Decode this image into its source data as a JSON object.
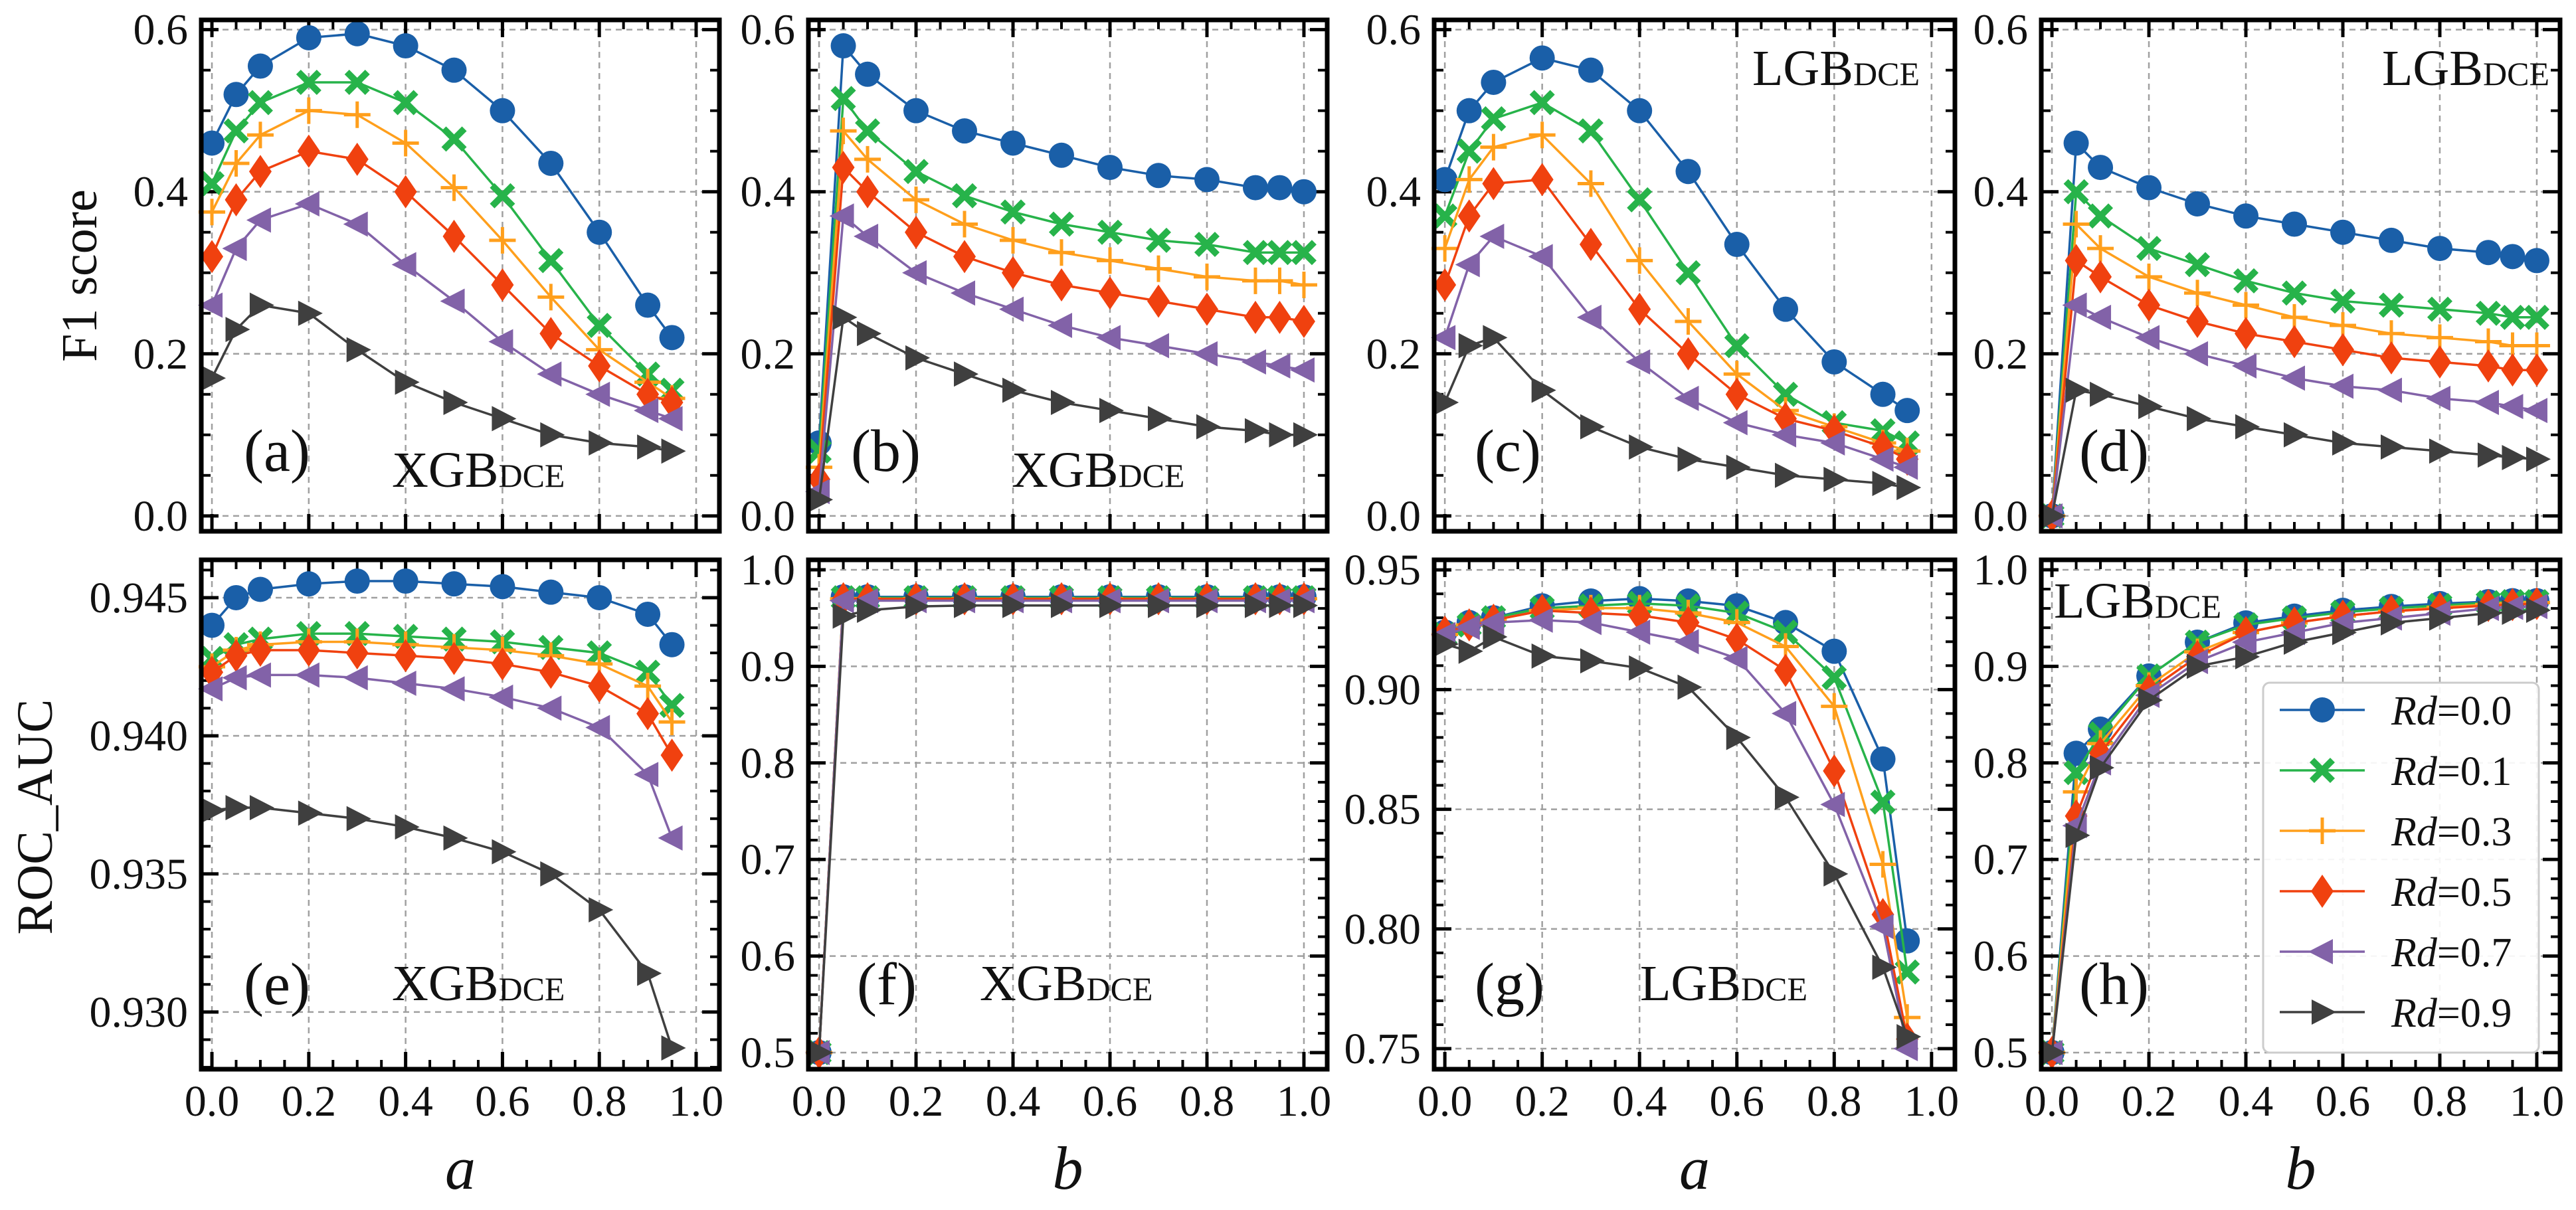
{
  "colors": {
    "series": [
      "#1a5fa8",
      "#27b34a",
      "#ff9f1c",
      "#f0410f",
      "#8262a8",
      "#3f3f3f"
    ],
    "grid": "#a0a0a0",
    "axis": "#000000"
  },
  "chart_data": {
    "type": "line",
    "legend": {
      "placement": "lower-right of panel (h)",
      "entries": [
        {
          "var": "Rd",
          "value": "=0.0",
          "marker": "circle"
        },
        {
          "var": "Rd",
          "value": "=0.1",
          "marker": "x-filled"
        },
        {
          "var": "Rd",
          "value": "=0.3",
          "marker": "plus"
        },
        {
          "var": "Rd",
          "value": "=0.5",
          "marker": "diamond"
        },
        {
          "var": "Rd",
          "value": "=0.7",
          "marker": "triangle-left"
        },
        {
          "var": "Rd",
          "value": "=0.9",
          "marker": "triangle-right"
        }
      ]
    },
    "ylabels": {
      "top": "F1 score",
      "bottom": "ROC_AUC"
    },
    "xlabels": [
      "a",
      "b",
      "a",
      "b"
    ],
    "xtick_labels": [
      "0.0",
      "0.2",
      "0.4",
      "0.6",
      "0.8",
      "1.0"
    ],
    "xticks": [
      0,
      0.2,
      0.4,
      0.6,
      0.8,
      1.0
    ],
    "xlim": [
      -0.022,
      1.048
    ],
    "grid": true,
    "panels": [
      {
        "label": "(a)",
        "model": "XGB",
        "model_sub": "DCE",
        "metric": "F1 score",
        "xvar": "a",
        "ylim": [
          -0.019,
          0.612
        ],
        "yticks": [
          0,
          0.2,
          0.4,
          0.6
        ],
        "ytick_labels": [
          "0.0",
          "0.2",
          "0.4",
          "0.6"
        ],
        "yminor": 0.05,
        "x": [
          0,
          0.05,
          0.1,
          0.2,
          0.3,
          0.4,
          0.5,
          0.6,
          0.7,
          0.8,
          0.9,
          0.95
        ],
        "series": [
          [
            0.46,
            0.52,
            0.555,
            0.59,
            0.595,
            0.58,
            0.55,
            0.5,
            0.435,
            0.35,
            0.26,
            0.22
          ],
          [
            0.41,
            0.475,
            0.51,
            0.535,
            0.535,
            0.51,
            0.465,
            0.395,
            0.315,
            0.235,
            0.175,
            0.155
          ],
          [
            0.375,
            0.435,
            0.47,
            0.5,
            0.495,
            0.46,
            0.405,
            0.34,
            0.27,
            0.205,
            0.165,
            0.145
          ],
          [
            0.32,
            0.39,
            0.425,
            0.45,
            0.44,
            0.4,
            0.345,
            0.285,
            0.225,
            0.185,
            0.15,
            0.14
          ],
          [
            0.26,
            0.33,
            0.365,
            0.385,
            0.36,
            0.31,
            0.265,
            0.215,
            0.175,
            0.15,
            0.13,
            0.12
          ],
          [
            0.17,
            0.23,
            0.26,
            0.25,
            0.205,
            0.165,
            0.14,
            0.12,
            0.1,
            0.09,
            0.085,
            0.08
          ]
        ]
      },
      {
        "label": "(b)",
        "model": "XGB",
        "model_sub": "DCE",
        "metric": "F1 score",
        "xvar": "b",
        "ylim": [
          -0.019,
          0.612
        ],
        "yticks": [
          0,
          0.2,
          0.4,
          0.6
        ],
        "ytick_labels": [
          "0.0",
          "0.2",
          "0.4",
          "0.6"
        ],
        "yminor": 0.05,
        "x": [
          0,
          0.05,
          0.1,
          0.2,
          0.3,
          0.4,
          0.5,
          0.6,
          0.7,
          0.8,
          0.9,
          0.95,
          1.0
        ],
        "series": [
          [
            0.09,
            0.58,
            0.545,
            0.5,
            0.475,
            0.46,
            0.445,
            0.43,
            0.42,
            0.415,
            0.405,
            0.405,
            0.4
          ],
          [
            0.08,
            0.515,
            0.475,
            0.425,
            0.395,
            0.375,
            0.36,
            0.35,
            0.34,
            0.335,
            0.325,
            0.325,
            0.325
          ],
          [
            0.06,
            0.475,
            0.44,
            0.39,
            0.36,
            0.34,
            0.325,
            0.315,
            0.305,
            0.295,
            0.29,
            0.29,
            0.285
          ],
          [
            0.045,
            0.43,
            0.4,
            0.35,
            0.32,
            0.3,
            0.285,
            0.275,
            0.265,
            0.255,
            0.245,
            0.245,
            0.24
          ],
          [
            0.03,
            0.37,
            0.345,
            0.3,
            0.275,
            0.255,
            0.235,
            0.22,
            0.21,
            0.2,
            0.19,
            0.185,
            0.18
          ],
          [
            0.02,
            0.245,
            0.225,
            0.195,
            0.175,
            0.155,
            0.14,
            0.13,
            0.12,
            0.11,
            0.105,
            0.1,
            0.1
          ]
        ]
      },
      {
        "label": "(c)",
        "model": "LGB",
        "model_sub": "DCE",
        "metric": "F1 score",
        "xvar": "a",
        "ylim": [
          -0.019,
          0.612
        ],
        "yticks": [
          0,
          0.2,
          0.4,
          0.6
        ],
        "ytick_labels": [
          "0.0",
          "0.2",
          "0.4",
          "0.6"
        ],
        "yminor": 0.05,
        "x": [
          0,
          0.05,
          0.1,
          0.2,
          0.3,
          0.4,
          0.5,
          0.6,
          0.7,
          0.8,
          0.9,
          0.95
        ],
        "series": [
          [
            0.415,
            0.5,
            0.535,
            0.565,
            0.55,
            0.5,
            0.425,
            0.335,
            0.255,
            0.19,
            0.15,
            0.13
          ],
          [
            0.37,
            0.45,
            0.49,
            0.51,
            0.475,
            0.39,
            0.3,
            0.21,
            0.15,
            0.115,
            0.105,
            0.09
          ],
          [
            0.33,
            0.415,
            0.455,
            0.47,
            0.41,
            0.315,
            0.24,
            0.175,
            0.13,
            0.11,
            0.09,
            0.08
          ],
          [
            0.285,
            0.37,
            0.41,
            0.415,
            0.335,
            0.255,
            0.2,
            0.15,
            0.12,
            0.105,
            0.085,
            0.07
          ],
          [
            0.22,
            0.31,
            0.345,
            0.32,
            0.245,
            0.19,
            0.145,
            0.115,
            0.1,
            0.09,
            0.07,
            0.06
          ],
          [
            0.14,
            0.21,
            0.22,
            0.155,
            0.11,
            0.085,
            0.07,
            0.06,
            0.05,
            0.045,
            0.04,
            0.035
          ]
        ]
      },
      {
        "label": "(d)",
        "model": "LGB",
        "model_sub": "DCE",
        "metric": "F1 score",
        "xvar": "b",
        "ylim": [
          -0.019,
          0.612
        ],
        "yticks": [
          0,
          0.2,
          0.4,
          0.6
        ],
        "ytick_labels": [
          "0.0",
          "0.2",
          "0.4",
          "0.6"
        ],
        "yminor": 0.05,
        "x": [
          0,
          0.05,
          0.1,
          0.2,
          0.3,
          0.4,
          0.5,
          0.6,
          0.7,
          0.8,
          0.9,
          0.95,
          1.0
        ],
        "series": [
          [
            0.0,
            0.46,
            0.43,
            0.405,
            0.385,
            0.37,
            0.36,
            0.35,
            0.34,
            0.33,
            0.325,
            0.32,
            0.315
          ],
          [
            0.0,
            0.4,
            0.37,
            0.33,
            0.31,
            0.29,
            0.275,
            0.265,
            0.26,
            0.255,
            0.25,
            0.245,
            0.245
          ],
          [
            0.0,
            0.36,
            0.33,
            0.295,
            0.275,
            0.26,
            0.245,
            0.235,
            0.225,
            0.22,
            0.215,
            0.21,
            0.21
          ],
          [
            0.0,
            0.315,
            0.295,
            0.26,
            0.24,
            0.225,
            0.215,
            0.205,
            0.195,
            0.19,
            0.185,
            0.18,
            0.18
          ],
          [
            0.0,
            0.26,
            0.245,
            0.22,
            0.2,
            0.185,
            0.17,
            0.16,
            0.155,
            0.145,
            0.14,
            0.135,
            0.13
          ],
          [
            0.0,
            0.155,
            0.15,
            0.135,
            0.12,
            0.11,
            0.1,
            0.09,
            0.085,
            0.08,
            0.075,
            0.072,
            0.07
          ]
        ]
      },
      {
        "label": "(e)",
        "model": "XGB",
        "model_sub": "DCE",
        "metric": "ROC_AUC",
        "xvar": "a",
        "ylim": [
          0.92793,
          0.94637
        ],
        "yticks": [
          0.93,
          0.935,
          0.94,
          0.945
        ],
        "ytick_labels": [
          "0.930",
          "0.935",
          "0.940",
          "0.945"
        ],
        "yminor": 0.001,
        "x": [
          0,
          0.05,
          0.1,
          0.2,
          0.3,
          0.4,
          0.5,
          0.6,
          0.7,
          0.8,
          0.9,
          0.95
        ],
        "series": [
          [
            0.944,
            0.945,
            0.9453,
            0.9455,
            0.9456,
            0.9456,
            0.9455,
            0.9454,
            0.9452,
            0.945,
            0.9444,
            0.9433
          ],
          [
            0.9428,
            0.9433,
            0.9435,
            0.9437,
            0.9437,
            0.9436,
            0.9435,
            0.9434,
            0.9432,
            0.943,
            0.9423,
            0.9411
          ],
          [
            0.9425,
            0.9431,
            0.9433,
            0.9434,
            0.9434,
            0.9433,
            0.9432,
            0.9431,
            0.9429,
            0.9426,
            0.9418,
            0.9405
          ],
          [
            0.9423,
            0.9429,
            0.9431,
            0.9431,
            0.943,
            0.9429,
            0.9428,
            0.9426,
            0.9423,
            0.9418,
            0.9408,
            0.9393
          ],
          [
            0.9417,
            0.9421,
            0.9422,
            0.9422,
            0.9421,
            0.9419,
            0.9417,
            0.9414,
            0.941,
            0.9403,
            0.9386,
            0.9363
          ],
          [
            0.9373,
            0.9374,
            0.9374,
            0.9372,
            0.937,
            0.9367,
            0.9363,
            0.9358,
            0.935,
            0.9337,
            0.9314,
            0.9287
          ]
        ]
      },
      {
        "label": "(f)",
        "model": "XGB",
        "model_sub": "DCE",
        "metric": "ROC_AUC",
        "xvar": "b",
        "ylim": [
          0.4828,
          1.0103
        ],
        "yticks": [
          0.5,
          0.6,
          0.7,
          0.8,
          0.9,
          1.0
        ],
        "ytick_labels": [
          "0.5",
          "0.6",
          "0.7",
          "0.8",
          "0.9",
          "1.0"
        ],
        "yminor": 0.02,
        "x": [
          0,
          0.05,
          0.1,
          0.2,
          0.3,
          0.4,
          0.5,
          0.6,
          0.7,
          0.8,
          0.9,
          0.95,
          1.0
        ],
        "series": [
          [
            0.5,
            0.972,
            0.972,
            0.972,
            0.972,
            0.972,
            0.972,
            0.972,
            0.972,
            0.972,
            0.972,
            0.972,
            0.972
          ],
          [
            0.5,
            0.971,
            0.971,
            0.971,
            0.971,
            0.971,
            0.971,
            0.971,
            0.971,
            0.971,
            0.971,
            0.971,
            0.971
          ],
          [
            0.5,
            0.97,
            0.97,
            0.97,
            0.97,
            0.97,
            0.97,
            0.97,
            0.97,
            0.97,
            0.97,
            0.97,
            0.97
          ],
          [
            0.5,
            0.97,
            0.97,
            0.97,
            0.97,
            0.97,
            0.97,
            0.97,
            0.97,
            0.97,
            0.97,
            0.97,
            0.97
          ],
          [
            0.5,
            0.968,
            0.968,
            0.968,
            0.968,
            0.968,
            0.968,
            0.968,
            0.968,
            0.968,
            0.968,
            0.968,
            0.968
          ],
          [
            0.5,
            0.952,
            0.958,
            0.962,
            0.963,
            0.963,
            0.963,
            0.963,
            0.963,
            0.963,
            0.963,
            0.963,
            0.963
          ]
        ]
      },
      {
        "label": "(g)",
        "model": "LGB",
        "model_sub": "DCE",
        "metric": "ROC_AUC",
        "xvar": "a",
        "ylim": [
          0.7414,
          0.9542
        ],
        "yticks": [
          0.75,
          0.8,
          0.85,
          0.9,
          0.95
        ],
        "ytick_labels": [
          "0.75",
          "0.80",
          "0.85",
          "0.90",
          "0.95"
        ],
        "yminor": 0.01,
        "x": [
          0,
          0.05,
          0.1,
          0.2,
          0.3,
          0.4,
          0.5,
          0.6,
          0.7,
          0.8,
          0.9,
          0.95
        ],
        "series": [
          [
            0.924,
            0.928,
            0.93,
            0.935,
            0.937,
            0.938,
            0.937,
            0.935,
            0.928,
            0.916,
            0.871,
            0.795
          ],
          [
            0.923,
            0.927,
            0.93,
            0.934,
            0.935,
            0.936,
            0.935,
            0.932,
            0.924,
            0.905,
            0.853,
            0.782
          ],
          [
            0.923,
            0.927,
            0.929,
            0.933,
            0.934,
            0.934,
            0.932,
            0.928,
            0.918,
            0.893,
            0.827,
            0.763
          ],
          [
            0.924,
            0.927,
            0.929,
            0.933,
            0.932,
            0.931,
            0.928,
            0.921,
            0.908,
            0.866,
            0.806,
            0.754
          ],
          [
            0.923,
            0.926,
            0.928,
            0.929,
            0.928,
            0.924,
            0.92,
            0.913,
            0.89,
            0.852,
            0.801,
            0.75
          ],
          [
            0.919,
            0.916,
            0.922,
            0.914,
            0.912,
            0.909,
            0.901,
            0.88,
            0.855,
            0.823,
            0.784,
            0.755
          ]
        ]
      },
      {
        "label": "(h)",
        "model": "LGB",
        "model_sub": "DCE",
        "metric": "ROC_AUC",
        "xvar": "b",
        "ylim": [
          0.4828,
          1.0103
        ],
        "yticks": [
          0.5,
          0.6,
          0.7,
          0.8,
          0.9,
          1.0
        ],
        "ytick_labels": [
          "0.5",
          "0.6",
          "0.7",
          "0.8",
          "0.9",
          "1.0"
        ],
        "yminor": 0.02,
        "x": [
          0,
          0.05,
          0.1,
          0.2,
          0.3,
          0.4,
          0.5,
          0.6,
          0.7,
          0.8,
          0.9,
          0.95,
          1.0
        ],
        "series": [
          [
            0.5,
            0.81,
            0.835,
            0.89,
            0.925,
            0.945,
            0.952,
            0.958,
            0.962,
            0.965,
            0.967,
            0.968,
            0.968
          ],
          [
            0.5,
            0.79,
            0.83,
            0.89,
            0.925,
            0.943,
            0.95,
            0.956,
            0.96,
            0.963,
            0.966,
            0.967,
            0.967
          ],
          [
            0.5,
            0.77,
            0.82,
            0.88,
            0.915,
            0.935,
            0.945,
            0.952,
            0.957,
            0.961,
            0.964,
            0.965,
            0.966
          ],
          [
            0.5,
            0.745,
            0.81,
            0.875,
            0.91,
            0.935,
            0.945,
            0.952,
            0.957,
            0.96,
            0.963,
            0.964,
            0.965
          ],
          [
            0.5,
            0.735,
            0.8,
            0.87,
            0.905,
            0.925,
            0.935,
            0.945,
            0.95,
            0.955,
            0.96,
            0.961,
            0.962
          ],
          [
            0.5,
            0.725,
            0.795,
            0.865,
            0.9,
            0.91,
            0.925,
            0.935,
            0.945,
            0.95,
            0.955,
            0.956,
            0.958
          ]
        ]
      }
    ]
  }
}
